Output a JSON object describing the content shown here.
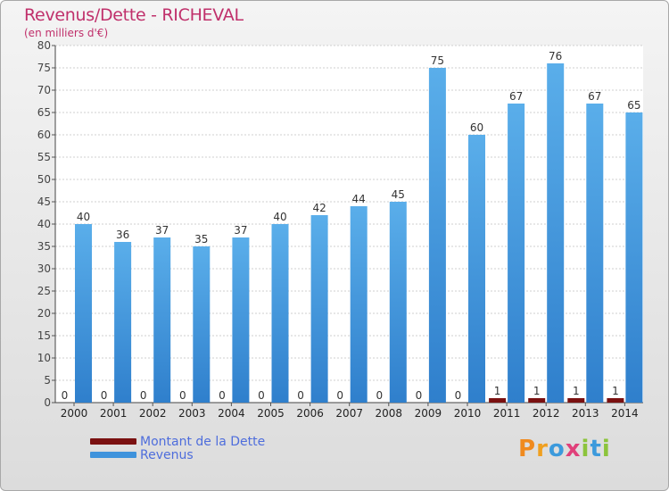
{
  "chart_data": {
    "type": "bar",
    "title": "Revenus/Dette - RICHEVAL",
    "subtitle": "(en milliers d'€)",
    "categories": [
      "2000",
      "2001",
      "2002",
      "2003",
      "2004",
      "2005",
      "2006",
      "2007",
      "2008",
      "2009",
      "2010",
      "2011",
      "2012",
      "2013",
      "2014"
    ],
    "series": [
      {
        "name": "Montant de la Dette",
        "values": [
          0,
          0,
          0,
          0,
          0,
          0,
          0,
          0,
          0,
          0,
          0,
          1,
          1,
          1,
          1
        ],
        "color": "#7a1010"
      },
      {
        "name": "Revenus",
        "values": [
          40,
          36,
          37,
          35,
          37,
          40,
          42,
          44,
          45,
          75,
          60,
          67,
          76,
          67,
          65
        ],
        "color": "#3f93dc"
      }
    ],
    "ylim": [
      0,
      80
    ],
    "yticks": [
      0,
      5,
      10,
      15,
      20,
      25,
      30,
      35,
      40,
      45,
      50,
      55,
      60,
      65,
      70,
      75,
      80
    ],
    "grid": true,
    "legend": "bottom-left"
  },
  "colors": {
    "title": "#c0306b",
    "legend_text": "#4e6ddc"
  },
  "logo": {
    "text": "Proxiti",
    "letters": [
      {
        "ch": "P",
        "color": "#f08a1e"
      },
      {
        "ch": "r",
        "color": "#f0a020"
      },
      {
        "ch": "o",
        "color": "#3c9adc"
      },
      {
        "ch": "x",
        "color": "#e0407a"
      },
      {
        "ch": "i",
        "color": "#8cc43c"
      },
      {
        "ch": "t",
        "color": "#3c9adc"
      },
      {
        "ch": "i",
        "color": "#8cc43c"
      }
    ]
  }
}
